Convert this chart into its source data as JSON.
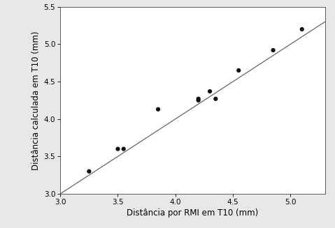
{
  "x_points": [
    3.25,
    3.5,
    3.55,
    3.85,
    4.2,
    4.2,
    4.3,
    4.35,
    4.55,
    4.85,
    5.1
  ],
  "y_points": [
    3.3,
    3.6,
    3.6,
    4.13,
    4.25,
    4.27,
    4.37,
    4.27,
    4.65,
    4.92,
    5.2
  ],
  "line_x": [
    3.0,
    5.3
  ],
  "line_y": [
    3.0,
    5.3
  ],
  "xlim": [
    3.0,
    5.3
  ],
  "ylim": [
    3.0,
    5.5
  ],
  "xticks": [
    3.0,
    3.5,
    4.0,
    4.5,
    5.0
  ],
  "yticks": [
    3.0,
    3.5,
    4.0,
    4.5,
    5.0,
    5.5
  ],
  "xlabel": "Distância por RMI em T10 (mm)",
  "ylabel": "Distância calculada em T10 (mm)",
  "tick_label_fontsize": 7.5,
  "axis_label_fontsize": 8.5,
  "marker_color": "#111111",
  "marker_size": 4.5,
  "line_color": "#666666",
  "line_width": 0.9,
  "plot_bg": "#ffffff",
  "figure_bg": "#e8e8e8"
}
